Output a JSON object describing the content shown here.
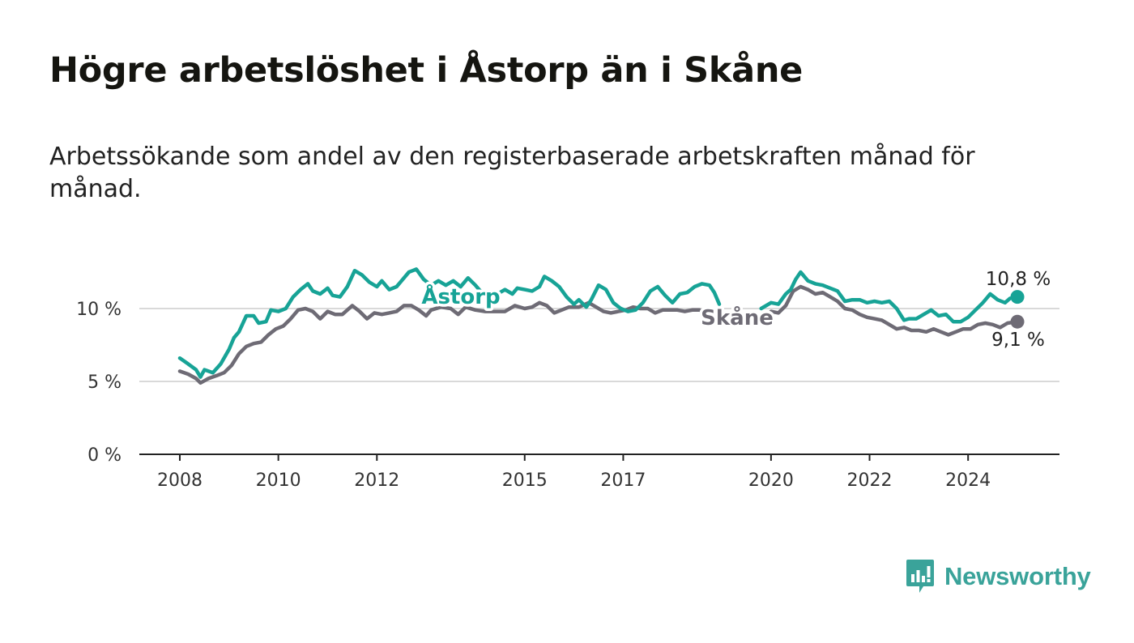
{
  "title": "Högre arbetslöshet i Åstorp än i Skåne",
  "subtitle": "Arbetssökande som andel av den registerbaserade arbetskraften månad för månad.",
  "brand": {
    "name": "Newsworthy",
    "icon": "newsworthy-logo-icon",
    "color": "#3aa39a"
  },
  "chart_data": {
    "type": "line",
    "title": "Högre arbetslöshet i Åstorp än i Skåne",
    "xlabel": "",
    "ylabel": "",
    "xlim": [
      2008,
      2025.3
    ],
    "ylim": [
      0,
      12.5
    ],
    "y_ticks": [
      0,
      5,
      10
    ],
    "y_tick_labels": [
      "0 %",
      "5 %",
      "10 %"
    ],
    "x_ticks": [
      2008,
      2010,
      2012,
      2015,
      2017,
      2020,
      2022,
      2024
    ],
    "x_tick_labels": [
      "2008",
      "2010",
      "2012",
      "2015",
      "2017",
      "2020",
      "2022",
      "2024"
    ],
    "gridlines": true,
    "series": [
      {
        "name": "Åstorp",
        "label": "Åstorp",
        "color": "#17a396",
        "end_label": "10,8 %",
        "points": [
          [
            2008,
            6.6
          ],
          [
            2008.17,
            6.2
          ],
          [
            2008.33,
            5.8
          ],
          [
            2008.42,
            5.3
          ],
          [
            2008.5,
            5.8
          ],
          [
            2008.67,
            5.6
          ],
          [
            2008.83,
            6.2
          ],
          [
            2009,
            7.2
          ],
          [
            2009.1,
            8.0
          ],
          [
            2009.2,
            8.4
          ],
          [
            2009.35,
            9.5
          ],
          [
            2009.5,
            9.5
          ],
          [
            2009.6,
            9.0
          ],
          [
            2009.75,
            9.1
          ],
          [
            2009.85,
            9.9
          ],
          [
            2010,
            9.8
          ],
          [
            2010.15,
            10.0
          ],
          [
            2010.3,
            10.8
          ],
          [
            2010.45,
            11.3
          ],
          [
            2010.6,
            11.7
          ],
          [
            2010.7,
            11.2
          ],
          [
            2010.85,
            11.0
          ],
          [
            2011,
            11.4
          ],
          [
            2011.1,
            10.9
          ],
          [
            2011.25,
            10.8
          ],
          [
            2011.4,
            11.5
          ],
          [
            2011.55,
            12.6
          ],
          [
            2011.7,
            12.3
          ],
          [
            2011.85,
            11.8
          ],
          [
            2012,
            11.5
          ],
          [
            2012.1,
            11.9
          ],
          [
            2012.25,
            11.3
          ],
          [
            2012.4,
            11.5
          ],
          [
            2012.5,
            11.9
          ],
          [
            2012.65,
            12.5
          ],
          [
            2012.8,
            12.7
          ],
          [
            2012.95,
            12.0
          ],
          [
            2013.1,
            11.6
          ],
          [
            2013.25,
            11.9
          ],
          [
            2013.4,
            11.6
          ],
          [
            2013.55,
            11.9
          ],
          [
            2013.7,
            11.5
          ],
          [
            2013.85,
            12.1
          ],
          [
            2014,
            11.6
          ],
          [
            2014.15,
            11.0
          ],
          [
            2014.3,
            10.6
          ],
          [
            2014.45,
            11.0
          ],
          [
            2014.6,
            11.3
          ],
          [
            2014.75,
            11.0
          ],
          [
            2014.85,
            11.4
          ],
          [
            2015,
            11.3
          ],
          [
            2015.15,
            11.2
          ],
          [
            2015.3,
            11.5
          ],
          [
            2015.4,
            12.2
          ],
          [
            2015.55,
            11.9
          ],
          [
            2015.7,
            11.5
          ],
          [
            2015.85,
            10.8
          ],
          [
            2016,
            10.3
          ],
          [
            2016.1,
            10.6
          ],
          [
            2016.25,
            10.1
          ],
          [
            2016.35,
            10.6
          ],
          [
            2016.5,
            11.6
          ],
          [
            2016.65,
            11.3
          ],
          [
            2016.8,
            10.4
          ],
          [
            2016.95,
            10.0
          ],
          [
            2017.1,
            9.8
          ],
          [
            2017.25,
            9.9
          ],
          [
            2017.4,
            10.4
          ],
          [
            2017.55,
            11.2
          ],
          [
            2017.7,
            11.5
          ],
          [
            2017.85,
            10.9
          ],
          [
            2018,
            10.4
          ],
          [
            2018.15,
            11.0
          ],
          [
            2018.3,
            11.1
          ],
          [
            2018.45,
            11.5
          ],
          [
            2018.6,
            11.7
          ],
          [
            2018.75,
            11.6
          ],
          [
            2018.85,
            11.1
          ],
          [
            2018.95,
            10.3
          ],
          null,
          [
            2019.8,
            10.0
          ],
          [
            2020,
            10.4
          ],
          [
            2020.15,
            10.3
          ],
          [
            2020.3,
            11.0
          ],
          [
            2020.4,
            11.3
          ],
          [
            2020.5,
            12.0
          ],
          [
            2020.6,
            12.5
          ],
          [
            2020.75,
            11.9
          ],
          [
            2020.9,
            11.7
          ],
          [
            2021.05,
            11.6
          ],
          [
            2021.2,
            11.4
          ],
          [
            2021.35,
            11.2
          ],
          [
            2021.5,
            10.5
          ],
          [
            2021.65,
            10.6
          ],
          [
            2021.8,
            10.6
          ],
          [
            2021.95,
            10.4
          ],
          [
            2022.1,
            10.5
          ],
          [
            2022.25,
            10.4
          ],
          [
            2022.4,
            10.5
          ],
          [
            2022.55,
            10.0
          ],
          [
            2022.7,
            9.2
          ],
          [
            2022.8,
            9.3
          ],
          [
            2022.95,
            9.3
          ],
          [
            2023.1,
            9.6
          ],
          [
            2023.25,
            9.9
          ],
          [
            2023.4,
            9.5
          ],
          [
            2023.55,
            9.6
          ],
          [
            2023.7,
            9.1
          ],
          [
            2023.85,
            9.1
          ],
          [
            2024,
            9.4
          ],
          [
            2024.15,
            9.9
          ],
          [
            2024.3,
            10.4
          ],
          [
            2024.45,
            11.0
          ],
          [
            2024.6,
            10.6
          ],
          [
            2024.75,
            10.4
          ],
          [
            2024.85,
            10.7
          ],
          [
            2025,
            10.8
          ]
        ]
      },
      {
        "name": "Skåne",
        "label": "Skåne",
        "color": "#6e6b75",
        "end_label": "9,1 %",
        "points": [
          [
            2008,
            5.7
          ],
          [
            2008.17,
            5.5
          ],
          [
            2008.33,
            5.2
          ],
          [
            2008.42,
            4.9
          ],
          [
            2008.58,
            5.2
          ],
          [
            2008.75,
            5.4
          ],
          [
            2008.9,
            5.6
          ],
          [
            2009.05,
            6.1
          ],
          [
            2009.2,
            6.9
          ],
          [
            2009.35,
            7.4
          ],
          [
            2009.5,
            7.6
          ],
          [
            2009.65,
            7.7
          ],
          [
            2009.8,
            8.2
          ],
          [
            2009.95,
            8.6
          ],
          [
            2010.1,
            8.8
          ],
          [
            2010.25,
            9.3
          ],
          [
            2010.4,
            9.9
          ],
          [
            2010.55,
            10.0
          ],
          [
            2010.7,
            9.8
          ],
          [
            2010.85,
            9.3
          ],
          [
            2011,
            9.8
          ],
          [
            2011.15,
            9.6
          ],
          [
            2011.3,
            9.6
          ],
          [
            2011.5,
            10.2
          ],
          [
            2011.65,
            9.8
          ],
          [
            2011.8,
            9.3
          ],
          [
            2011.95,
            9.7
          ],
          [
            2012.1,
            9.6
          ],
          [
            2012.25,
            9.7
          ],
          [
            2012.4,
            9.8
          ],
          [
            2012.55,
            10.2
          ],
          [
            2012.7,
            10.2
          ],
          [
            2012.85,
            9.9
          ],
          [
            2013,
            9.5
          ],
          [
            2013.1,
            9.9
          ],
          [
            2013.3,
            10.1
          ],
          [
            2013.5,
            10.0
          ],
          [
            2013.65,
            9.6
          ],
          [
            2013.8,
            10.1
          ],
          [
            2014,
            9.9
          ],
          [
            2014.2,
            9.8
          ],
          [
            2014.4,
            9.8
          ],
          [
            2014.6,
            9.8
          ],
          [
            2014.8,
            10.2
          ],
          [
            2015,
            10.0
          ],
          [
            2015.15,
            10.1
          ],
          [
            2015.3,
            10.4
          ],
          [
            2015.45,
            10.2
          ],
          [
            2015.6,
            9.7
          ],
          [
            2015.75,
            9.9
          ],
          [
            2015.9,
            10.1
          ],
          [
            2016.1,
            10.1
          ],
          [
            2016.3,
            10.4
          ],
          [
            2016.45,
            10.1
          ],
          [
            2016.6,
            9.8
          ],
          [
            2016.75,
            9.7
          ],
          [
            2016.9,
            9.8
          ],
          [
            2017.05,
            9.9
          ],
          [
            2017.2,
            10.1
          ],
          [
            2017.35,
            10.0
          ],
          [
            2017.5,
            10.0
          ],
          [
            2017.65,
            9.7
          ],
          [
            2017.8,
            9.9
          ],
          [
            2017.95,
            9.9
          ],
          [
            2018.1,
            9.9
          ],
          [
            2018.25,
            9.8
          ],
          [
            2018.4,
            9.9
          ],
          [
            2018.55,
            9.9
          ],
          [
            2018.7,
            9.7
          ],
          [
            2018.85,
            9.5
          ],
          [
            2018.95,
            9.3
          ],
          null,
          [
            2019.85,
            9.3
          ],
          [
            2020,
            9.8
          ],
          [
            2020.15,
            9.7
          ],
          [
            2020.3,
            10.2
          ],
          [
            2020.45,
            11.2
          ],
          [
            2020.6,
            11.5
          ],
          [
            2020.75,
            11.3
          ],
          [
            2020.9,
            11.0
          ],
          [
            2021.05,
            11.1
          ],
          [
            2021.2,
            10.8
          ],
          [
            2021.35,
            10.5
          ],
          [
            2021.5,
            10.0
          ],
          [
            2021.65,
            9.9
          ],
          [
            2021.8,
            9.6
          ],
          [
            2021.95,
            9.4
          ],
          [
            2022.1,
            9.3
          ],
          [
            2022.25,
            9.2
          ],
          [
            2022.4,
            8.9
          ],
          [
            2022.55,
            8.6
          ],
          [
            2022.7,
            8.7
          ],
          [
            2022.85,
            8.5
          ],
          [
            2023,
            8.5
          ],
          [
            2023.15,
            8.4
          ],
          [
            2023.3,
            8.6
          ],
          [
            2023.45,
            8.4
          ],
          [
            2023.6,
            8.2
          ],
          [
            2023.75,
            8.4
          ],
          [
            2023.9,
            8.6
          ],
          [
            2024.05,
            8.6
          ],
          [
            2024.2,
            8.9
          ],
          [
            2024.35,
            9.0
          ],
          [
            2024.5,
            8.9
          ],
          [
            2024.65,
            8.7
          ],
          [
            2024.8,
            9.0
          ],
          [
            2025,
            9.1
          ]
        ]
      }
    ]
  }
}
